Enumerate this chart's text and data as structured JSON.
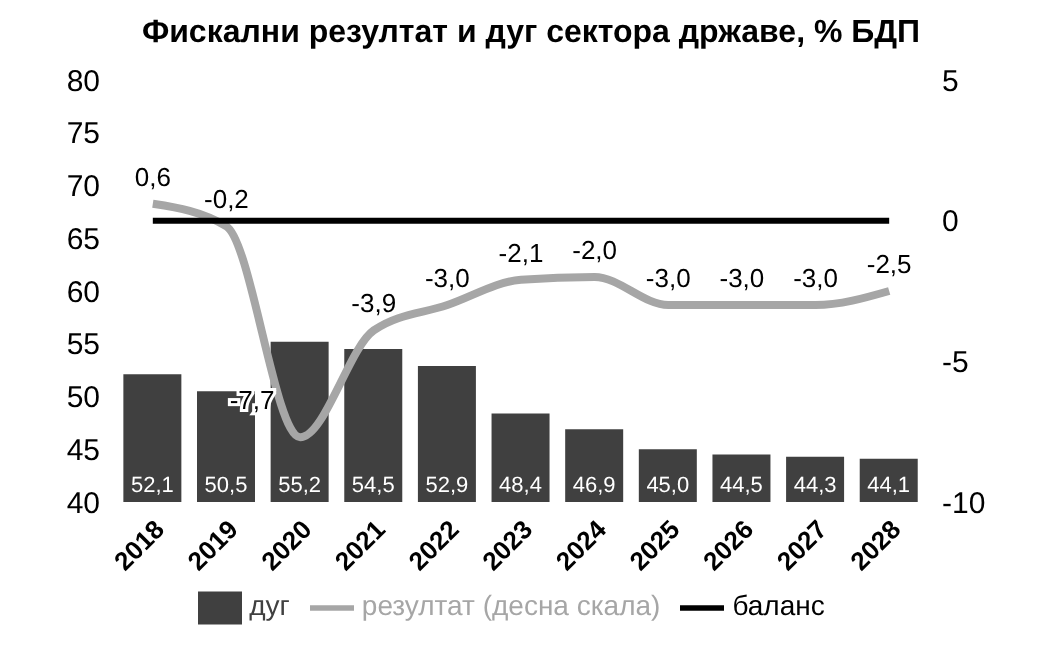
{
  "chart_data": {
    "type": "bar",
    "title": "Фискални резултат и дуг сектора државе, % БДП",
    "categories": [
      "2018",
      "2019",
      "2020",
      "2021",
      "2022",
      "2023",
      "2024",
      "2025",
      "2026",
      "2027",
      "2028"
    ],
    "series": [
      {
        "name": "дуг",
        "color": "#404040",
        "values": [
          52.1,
          50.5,
          55.2,
          54.5,
          52.9,
          48.4,
          46.9,
          45.0,
          44.5,
          44.3,
          44.1
        ],
        "value_labels": [
          "52,1",
          "50,5",
          "55,2",
          "54,5",
          "52,9",
          "48,4",
          "46,9",
          "45,0",
          "44,5",
          "44,3",
          "44,1"
        ]
      },
      {
        "name": "резултат (десна скала)",
        "type": "line",
        "axis": "y2",
        "color": "#a6a6a6",
        "values": [
          0.6,
          -0.2,
          -7.7,
          -3.9,
          -3.0,
          -2.1,
          -2.0,
          -3.0,
          -3.0,
          -3.0,
          -2.5
        ],
        "value_labels": [
          "0,6",
          "-0,2",
          "-7,7",
          "-3,9",
          "-3,0",
          "-2,1",
          "-2,0",
          "-3,0",
          "-3,0",
          "-3,0",
          "-2,5"
        ]
      },
      {
        "name": "баланс",
        "type": "line",
        "axis": "y2",
        "color": "#000000",
        "values": [
          0,
          0,
          0,
          0,
          0,
          0,
          0,
          0,
          0,
          0,
          0
        ]
      }
    ],
    "ylim": [
      40,
      80
    ],
    "yticks": [
      40,
      45,
      50,
      55,
      60,
      65,
      70,
      75,
      80
    ],
    "y2lim": [
      -10,
      5
    ],
    "y2ticks": [
      -10,
      -5,
      0,
      5
    ],
    "legend": "bottom",
    "marker": "none"
  }
}
